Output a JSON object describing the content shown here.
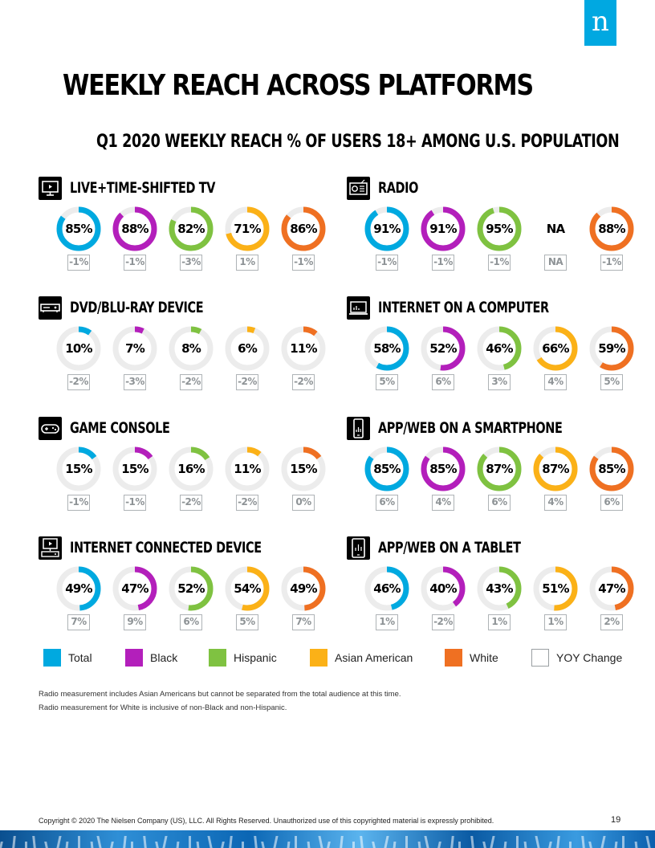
{
  "logo_letter": "n",
  "title": "WEEKLY REACH ACROSS PLATFORMS",
  "subtitle": "Q1 2020 WEEKLY REACH % OF USERS 18+ AMONG U.S. POPULATION",
  "colors": {
    "Total": "#00a9e0",
    "Black": "#b31fbb",
    "Hispanic": "#7fc241",
    "Asian American": "#fbb117",
    "White": "#ef7022",
    "track": "#ececec"
  },
  "chart_data": {
    "type": "donut",
    "categories": [
      "Total",
      "Black",
      "Hispanic",
      "Asian American",
      "White"
    ],
    "panels": [
      {
        "title": "LIVE+TIME-SHIFTED TV",
        "icon": "tv-icon",
        "values": [
          85,
          88,
          82,
          71,
          86
        ],
        "labels": [
          "85%",
          "88%",
          "82%",
          "71%",
          "86%"
        ],
        "yoy": [
          "-1%",
          "-1%",
          "-3%",
          "1%",
          "-1%"
        ]
      },
      {
        "title": "RADIO",
        "icon": "radio-icon",
        "values": [
          91,
          91,
          95,
          null,
          88
        ],
        "labels": [
          "91%",
          "91%",
          "95%",
          "NA",
          "88%"
        ],
        "yoy": [
          "-1%",
          "-1%",
          "-1%",
          "NA",
          "-1%"
        ]
      },
      {
        "title": "DVD/BLU-RAY DEVICE",
        "icon": "dvd-player-icon",
        "values": [
          10,
          7,
          8,
          6,
          11
        ],
        "labels": [
          "10%",
          "7%",
          "8%",
          "6%",
          "11%"
        ],
        "yoy": [
          "-2%",
          "-3%",
          "-2%",
          "-2%",
          "-2%"
        ]
      },
      {
        "title": "INTERNET ON A COMPUTER",
        "icon": "computer-icon",
        "values": [
          58,
          52,
          46,
          66,
          59
        ],
        "labels": [
          "58%",
          "52%",
          "46%",
          "66%",
          "59%"
        ],
        "yoy": [
          "5%",
          "6%",
          "3%",
          "4%",
          "5%"
        ]
      },
      {
        "title": "GAME CONSOLE",
        "icon": "game-controller-icon",
        "values": [
          15,
          15,
          16,
          11,
          15
        ],
        "labels": [
          "15%",
          "15%",
          "16%",
          "11%",
          "15%"
        ],
        "yoy": [
          "-1%",
          "-1%",
          "-2%",
          "-2%",
          "0%"
        ]
      },
      {
        "title": "APP/WEB ON A SMARTPHONE",
        "icon": "smartphone-icon",
        "values": [
          85,
          85,
          87,
          87,
          85
        ],
        "labels": [
          "85%",
          "85%",
          "87%",
          "87%",
          "85%"
        ],
        "yoy": [
          "6%",
          "4%",
          "6%",
          "4%",
          "6%"
        ]
      },
      {
        "title": "INTERNET CONNECTED DEVICE",
        "icon": "connected-tv-icon",
        "values": [
          49,
          47,
          52,
          54,
          49
        ],
        "labels": [
          "49%",
          "47%",
          "52%",
          "54%",
          "49%"
        ],
        "yoy": [
          "7%",
          "9%",
          "6%",
          "5%",
          "7%"
        ]
      },
      {
        "title": "APP/WEB ON A TABLET",
        "icon": "tablet-icon",
        "values": [
          46,
          40,
          43,
          51,
          47
        ],
        "labels": [
          "46%",
          "40%",
          "43%",
          "51%",
          "47%"
        ],
        "yoy": [
          "1%",
          "-2%",
          "1%",
          "1%",
          "2%"
        ]
      }
    ],
    "legend": [
      "Total",
      "Black",
      "Hispanic",
      "Asian American",
      "White",
      "YOY Change"
    ]
  },
  "notes": [
    "Radio measurement includes Asian Americans but cannot be separated from the total audience at this time.",
    "Radio measurement for White is inclusive of non-Black and non-Hispanic."
  ],
  "copyright": "Copyright © 2020 The Nielsen Company (US), LLC. All Rights Reserved. Unauthorized use of this copyrighted material is expressly prohibited.",
  "page_number": "19"
}
